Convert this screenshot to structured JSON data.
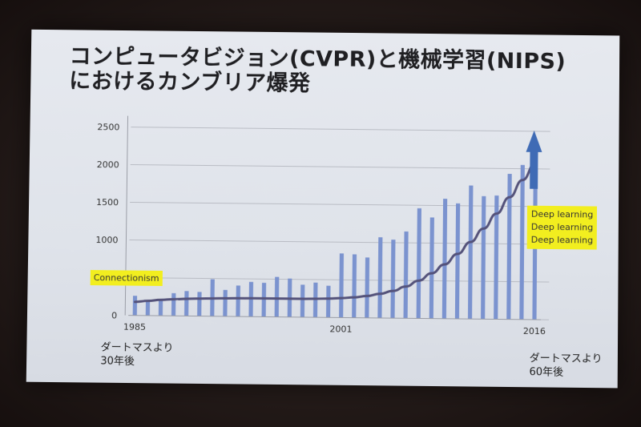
{
  "slide": {
    "title_line1": "コンピュータビジョン(CVPR)と機械学習(NIPS)",
    "title_line2": "におけるカンブリア爆発"
  },
  "annotations": {
    "connectionism": "Connectionism",
    "deep_learning": [
      "Deep learning",
      "Deep learning",
      "Deep learning"
    ],
    "left_note": [
      "ダートマスより",
      "30年後"
    ],
    "right_note": [
      "ダートマスより",
      "60年後"
    ]
  },
  "colors": {
    "bar": "#7b93cf",
    "curve": "#54527a",
    "arrow": "#3f6bb5",
    "highlight": "#f2ee1f"
  },
  "chart_data": {
    "type": "bar",
    "yticks": [
      0,
      500,
      1000,
      1500,
      2000,
      2500
    ],
    "ylim": [
      0,
      2500
    ],
    "xtick_labels": [
      {
        "index": 0,
        "label": "1985"
      },
      {
        "index": 16,
        "label": "2001"
      },
      {
        "index": 31,
        "label": "2016"
      }
    ],
    "years": [
      1985,
      1986,
      1987,
      1988,
      1989,
      1990,
      1991,
      1992,
      1993,
      1994,
      1995,
      1996,
      1997,
      1998,
      1999,
      2000,
      2001,
      2002,
      2003,
      2004,
      2005,
      2006,
      2007,
      2008,
      2009,
      2010,
      2011,
      2012,
      2013,
      2014,
      2015,
      2016
    ],
    "values": [
      260,
      200,
      210,
      300,
      330,
      320,
      490,
      350,
      410,
      460,
      450,
      530,
      510,
      430,
      460,
      420,
      850,
      840,
      800,
      1070,
      1040,
      1150,
      1460,
      1340,
      1590,
      1530,
      1770,
      1630,
      1640,
      1930,
      2050,
      2100
    ],
    "trend": [
      180,
      195,
      210,
      220,
      228,
      232,
      236,
      240,
      242,
      243,
      243,
      243,
      243,
      244,
      246,
      250,
      258,
      270,
      290,
      320,
      360,
      420,
      500,
      600,
      720,
      860,
      1020,
      1200,
      1400,
      1620,
      1850,
      2080
    ]
  }
}
